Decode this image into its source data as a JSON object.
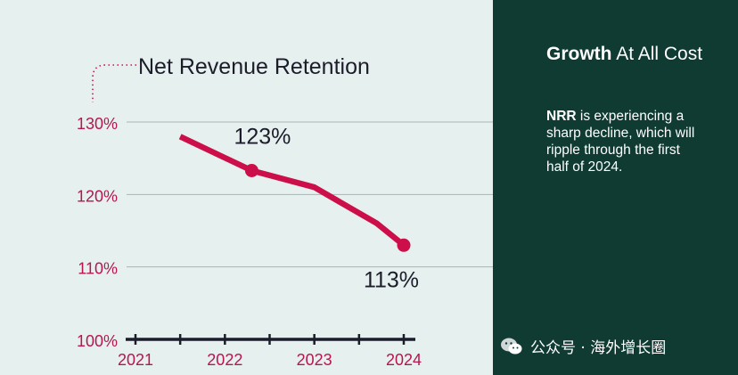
{
  "chart_data": {
    "type": "line",
    "title": "Net Revenue Retention",
    "x": [
      2021.5,
      2022.3,
      2023,
      2023.7,
      2024
    ],
    "values": [
      128,
      123.3,
      121,
      116,
      113
    ],
    "categories": [
      "2021",
      "2022",
      "2023",
      "2024"
    ],
    "y_ticks": [
      "130%",
      "120%",
      "110%",
      "100%"
    ],
    "y_tick_values": [
      130,
      120,
      110,
      100
    ],
    "ylim": [
      100,
      130
    ],
    "xlim": [
      2021,
      2024
    ],
    "annotations": [
      {
        "label": "123%",
        "x": 2022.3,
        "y": 123.3
      },
      {
        "label": "113%",
        "x": 2024,
        "y": 113
      }
    ],
    "colors": {
      "line": "#cc0f4a",
      "axis": "#1c1c2a",
      "tick_label": "#b7154f",
      "grid": "#a9b3b2"
    }
  },
  "panel": {
    "title_bold": "Growth",
    "title_rest": "At All Cost",
    "body_bold": "NRR",
    "body_rest": "is experiencing a sharp decline, which will ripple through the first half of 2024."
  },
  "watermark": {
    "icon": "wechat-icon",
    "text": "公众号 · 海外增长圈"
  }
}
